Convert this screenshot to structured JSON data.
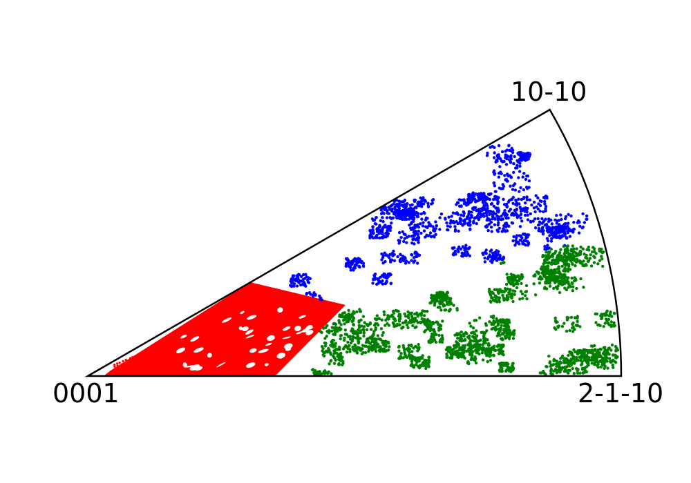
{
  "figure": {
    "type": "inverse-pole-figure-sector",
    "sector_angle_deg": 30,
    "labels": {
      "origin": "0001",
      "right": "2-1-10",
      "top": "10-10"
    },
    "colors": {
      "red_region": "#ff0000",
      "blue_region": "#0000ff",
      "green_region": "#008000",
      "outline": "#000000"
    },
    "regions": [
      {
        "name": "red",
        "color": "#ff0000",
        "extent": "near 0001 corner, up to about one third of the radius"
      },
      {
        "name": "blue",
        "color": "#0000ff",
        "extent": "upper wedge toward 10-10"
      },
      {
        "name": "green",
        "color": "#008000",
        "extent": "lower wedge toward 2-1-10"
      }
    ]
  }
}
